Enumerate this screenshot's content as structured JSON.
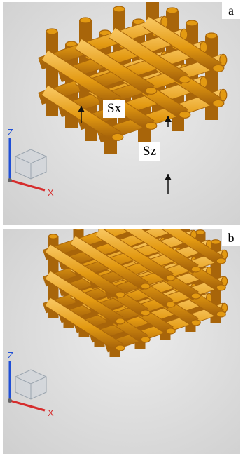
{
  "panels": [
    {
      "label": "a",
      "annotations": {
        "sx": "Sx",
        "sz": "Sz"
      }
    },
    {
      "label": "b"
    }
  ],
  "triad": {
    "z_label": "Z",
    "x_label": "X"
  },
  "colors": {
    "strut": "#e39a12",
    "strut_dark": "#a8650a",
    "strut_light": "#f7c35a",
    "axis_z": "#1f4fd6",
    "axis_x": "#d62d2d",
    "arrow": "#111111"
  }
}
